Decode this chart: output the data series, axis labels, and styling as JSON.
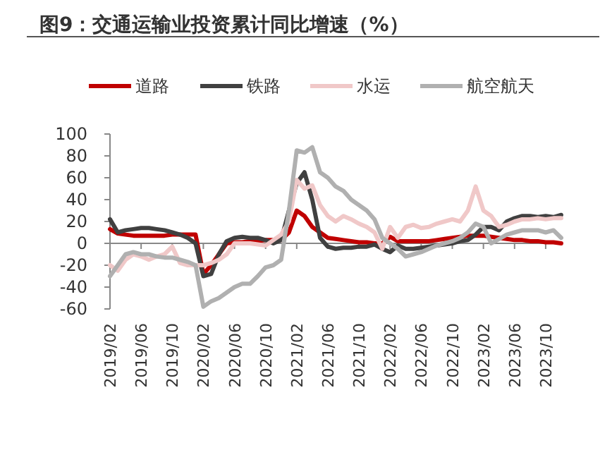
{
  "chart_data": {
    "type": "line",
    "title": "图9：交通运输业投资累计同比增速（%）",
    "categories": [
      "2019/02",
      null,
      null,
      null,
      "2019/06",
      null,
      null,
      null,
      "2019/10",
      null,
      null,
      null,
      "2020/02",
      null,
      null,
      null,
      "2020/06",
      null,
      null,
      null,
      "2020/10",
      null,
      null,
      null,
      "2021/02",
      null,
      null,
      null,
      "2021/06",
      null,
      null,
      null,
      "2021/10",
      null,
      null,
      null,
      "2022/02",
      null,
      null,
      null,
      "2022/06",
      null,
      null,
      null,
      "2022/10",
      null,
      null,
      null,
      "2023/02",
      null,
      null,
      null,
      "2023/06",
      null,
      null,
      null,
      "2023/10",
      null,
      null
    ],
    "series": [
      {
        "name": "道路",
        "color": "#c00000",
        "values": [
          13,
          9,
          8,
          7,
          7,
          7,
          7,
          7,
          8,
          8,
          8,
          8,
          -28,
          -20,
          -10,
          0,
          1,
          1,
          2,
          2,
          3,
          3,
          3,
          10,
          30,
          25,
          15,
          10,
          5,
          4,
          3,
          2,
          1,
          1,
          0,
          0,
          6,
          2,
          2,
          2,
          2,
          2,
          3,
          4,
          5,
          6,
          7,
          7,
          7,
          6,
          5,
          4,
          3,
          3,
          2,
          2,
          1,
          1,
          0
        ]
      },
      {
        "name": "铁路",
        "color": "#404040",
        "values": [
          22,
          10,
          12,
          13,
          14,
          14,
          13,
          12,
          10,
          8,
          5,
          0,
          -30,
          -28,
          -10,
          2,
          5,
          6,
          5,
          5,
          3,
          0,
          3,
          30,
          55,
          65,
          40,
          5,
          -3,
          -5,
          -4,
          -4,
          -3,
          -3,
          -1,
          -5,
          -8,
          -2,
          -5,
          -5,
          -4,
          -3,
          -2,
          -1,
          0,
          2,
          3,
          8,
          15,
          15,
          12,
          20,
          23,
          25,
          25,
          24,
          25,
          24,
          26
        ]
      },
      {
        "name": "水运",
        "color": "#f0c8c8",
        "values": [
          -20,
          -25,
          -15,
          -10,
          -12,
          -15,
          -12,
          -10,
          -3,
          -18,
          -20,
          -20,
          -20,
          -18,
          -15,
          -10,
          0,
          0,
          0,
          -1,
          -2,
          3,
          8,
          20,
          58,
          50,
          53,
          35,
          25,
          20,
          25,
          22,
          18,
          15,
          10,
          -5,
          15,
          5,
          15,
          17,
          14,
          15,
          18,
          20,
          22,
          20,
          30,
          52,
          30,
          25,
          15,
          17,
          20,
          22,
          22,
          23,
          22,
          23,
          23
        ]
      },
      {
        "name": "航空航天",
        "color": "#b0b0b0",
        "values": [
          -30,
          -20,
          -10,
          -8,
          -10,
          -10,
          -12,
          -13,
          -13,
          -15,
          -17,
          -20,
          -58,
          -53,
          -50,
          -45,
          -40,
          -37,
          -37,
          -30,
          -22,
          -20,
          -15,
          30,
          85,
          83,
          88,
          65,
          60,
          52,
          48,
          40,
          35,
          30,
          22,
          5,
          0,
          -5,
          -12,
          -10,
          -8,
          -5,
          -2,
          0,
          2,
          5,
          10,
          18,
          15,
          0,
          4,
          8,
          10,
          12,
          12,
          12,
          10,
          12,
          5
        ]
      }
    ],
    "ylim": [
      -60,
      100
    ],
    "yticks": [
      -60,
      -40,
      -20,
      0,
      20,
      40,
      60,
      80,
      100
    ],
    "legend": "top",
    "line_style": "solid",
    "marker": "none"
  }
}
